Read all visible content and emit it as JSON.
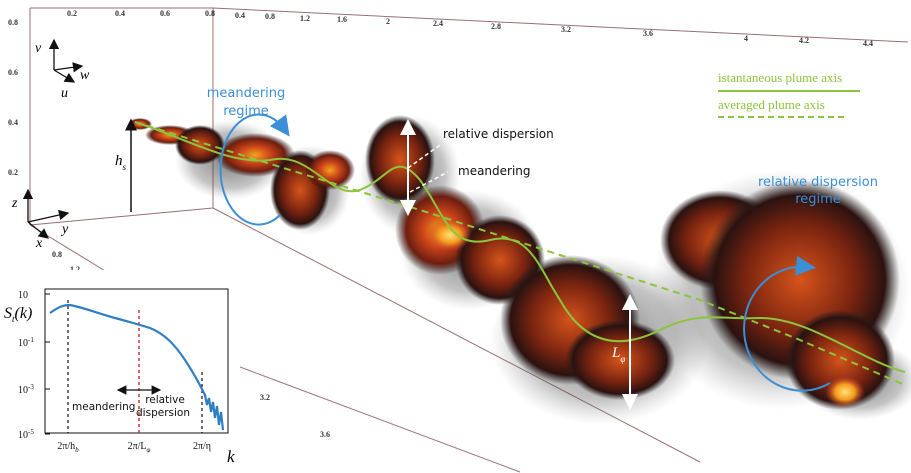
{
  "axes_3d": {
    "top_ticks_left": [
      "0.2",
      "0.4",
      "0.6",
      "0.8"
    ],
    "top_ticks_right": [
      "0.4",
      "0.8",
      "1.2",
      "1.6",
      "2",
      "2.4",
      "2.8",
      "3.2",
      "3.6",
      "4",
      "4.2",
      "4.4"
    ],
    "left_ticks": [
      "0.8",
      "0.6",
      "0.4",
      "0.2"
    ],
    "lower_ticks": [
      "0.8",
      "1.2"
    ],
    "bottom_ticks": [
      "3.2",
      "3.6"
    ]
  },
  "triads": {
    "upper": {
      "v": "v",
      "w": "w",
      "u": "u"
    },
    "lower": {
      "z": "z",
      "y": "y",
      "x": "x"
    }
  },
  "labels": {
    "hs_main": "h",
    "hs_sub": "s",
    "meandering_regime_1": "meandering",
    "meandering_regime_2": "regime",
    "relative_dispersion": "relative dispersion",
    "meandering": "meandering",
    "rel_disp_regime_1": "relative dispersion",
    "rel_disp_regime_2": "regime",
    "L_main": "L",
    "L_sub": "φ"
  },
  "legend": {
    "instantaneous": "istantaneous plume axis",
    "averaged": "averaged plume axis"
  },
  "inset": {
    "ylabel_main": "S",
    "ylabel_sub": "t",
    "ylabel_tail": "(k)",
    "y_ticks": [
      {
        "base": "10",
        "exp": ""
      },
      {
        "base": "10",
        "exp": "-1"
      },
      {
        "base": "10",
        "exp": "-3"
      },
      {
        "base": "10",
        "exp": "-5"
      }
    ],
    "x_ticks": [
      {
        "main": "2π/h",
        "sub": "b"
      },
      {
        "main": "2π/L",
        "sub": "φ"
      },
      {
        "main": "2π/η",
        "sub": ""
      }
    ],
    "xlabel": "k",
    "meandering": "meandering",
    "relative_1": "relative",
    "relative_2": "dispersion"
  },
  "colors": {
    "regime_blue": "#3a8fd6",
    "axis_green": "#8cc43c",
    "spectrum_blue": "#2f7fc4",
    "marker_red": "#e03030"
  }
}
